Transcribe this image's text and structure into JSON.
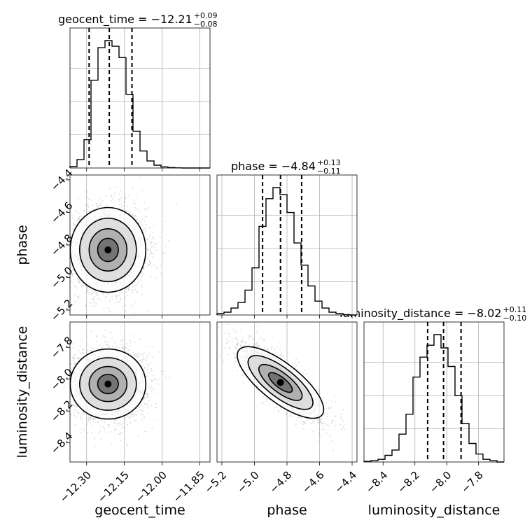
{
  "chart_data": {
    "type": "corner",
    "parameters": [
      "geocent_time",
      "phase",
      "luminosity_distance"
    ],
    "titles": [
      {
        "name": "geocent_time",
        "median": "−12.21",
        "plus": "+0.09",
        "minus": "−0.08"
      },
      {
        "name": "phase",
        "median": "−4.84",
        "plus": "+0.13",
        "minus": "−0.11"
      },
      {
        "name": "luminosity_distance",
        "median": "−8.02",
        "plus": "+0.11",
        "minus": "−0.10"
      }
    ],
    "ranges": {
      "geocent_time": [
        -12.366,
        -11.81
      ],
      "phase": [
        -5.23,
        -4.37
      ],
      "luminosity_distance": [
        -8.52,
        -7.64
      ]
    },
    "ticks": {
      "geocent_time": [
        -12.3,
        -12.15,
        -12.0,
        -11.85
      ],
      "phase": [
        -5.2,
        -5.0,
        -4.8,
        -4.6,
        -4.4
      ],
      "luminosity_distance": [
        -8.4,
        -8.2,
        -8.0,
        -7.8
      ]
    },
    "tick_labels": {
      "geocent_time": [
        "−12.30",
        "−12.15",
        "−12.00",
        "−11.85"
      ],
      "phase": [
        "−5.2",
        "−5.0",
        "−4.8",
        "−4.6",
        "−4.4"
      ],
      "luminosity_distance": [
        "−8.4",
        "−8.2",
        "−8.0",
        "−7.8"
      ]
    },
    "quantile_lines": {
      "geocent_time": [
        -12.29,
        -12.21,
        -12.12
      ],
      "phase": [
        -4.95,
        -4.84,
        -4.71
      ],
      "luminosity_distance": [
        -8.12,
        -8.02,
        -7.91
      ]
    },
    "histograms": {
      "geocent_time": {
        "edges": [
          -12.366,
          -12.3382,
          -12.3104,
          -12.2826,
          -12.2548,
          -12.227,
          -12.1992,
          -12.1714,
          -12.1436,
          -12.1158,
          -12.088,
          -12.0602,
          -12.0324,
          -12.0046,
          -11.9768,
          -11.949,
          -11.9212,
          -11.8934,
          -11.8656,
          -11.8378,
          -11.81
        ],
        "counts": [
          1,
          6,
          20,
          62,
          85,
          90,
          86,
          78,
          52,
          26,
          12,
          5,
          2,
          0.8,
          0.3,
          0.1,
          0,
          0,
          0,
          0
        ]
      },
      "phase": {
        "edges": [
          -5.23,
          -5.187,
          -5.144,
          -5.101,
          -5.058,
          -5.015,
          -4.972,
          -4.929,
          -4.886,
          -4.843,
          -4.8,
          -4.757,
          -4.714,
          -4.671,
          -4.628,
          -4.585,
          -4.542,
          -4.499,
          -4.456,
          -4.413,
          -4.37
        ],
        "counts": [
          1,
          2,
          5,
          9,
          18,
          34,
          64,
          84,
          92,
          87,
          74,
          52,
          36,
          21,
          10,
          5,
          2,
          1,
          0.3,
          0
        ]
      },
      "luminosity_distance": {
        "edges": [
          -8.52,
          -8.476,
          -8.432,
          -8.388,
          -8.344,
          -8.3,
          -8.256,
          -8.212,
          -8.168,
          -8.124,
          -8.08,
          -8.036,
          -7.992,
          -7.948,
          -7.904,
          -7.86,
          -7.816,
          -7.772,
          -7.728,
          -7.684,
          -7.64
        ],
        "counts": [
          0.5,
          1,
          2,
          5,
          9,
          21,
          36,
          64,
          79,
          88,
          96,
          86,
          72,
          50,
          29,
          14,
          6,
          2,
          1,
          0
        ]
      }
    },
    "joint_2d": [
      {
        "x": "geocent_time",
        "y": "phase",
        "mean": [
          -12.215,
          -4.83
        ],
        "sd": [
          0.075,
          0.13
        ],
        "corr": 0.0
      },
      {
        "x": "geocent_time",
        "y": "luminosity_distance",
        "mean": [
          -12.215,
          -8.03
        ],
        "sd": [
          0.075,
          0.11
        ],
        "corr": 0.0
      },
      {
        "x": "phase",
        "y": "luminosity_distance",
        "mean": [
          -4.84,
          -8.02
        ],
        "sd": [
          0.12,
          0.11
        ],
        "corr": -0.8
      }
    ],
    "grid": true
  }
}
